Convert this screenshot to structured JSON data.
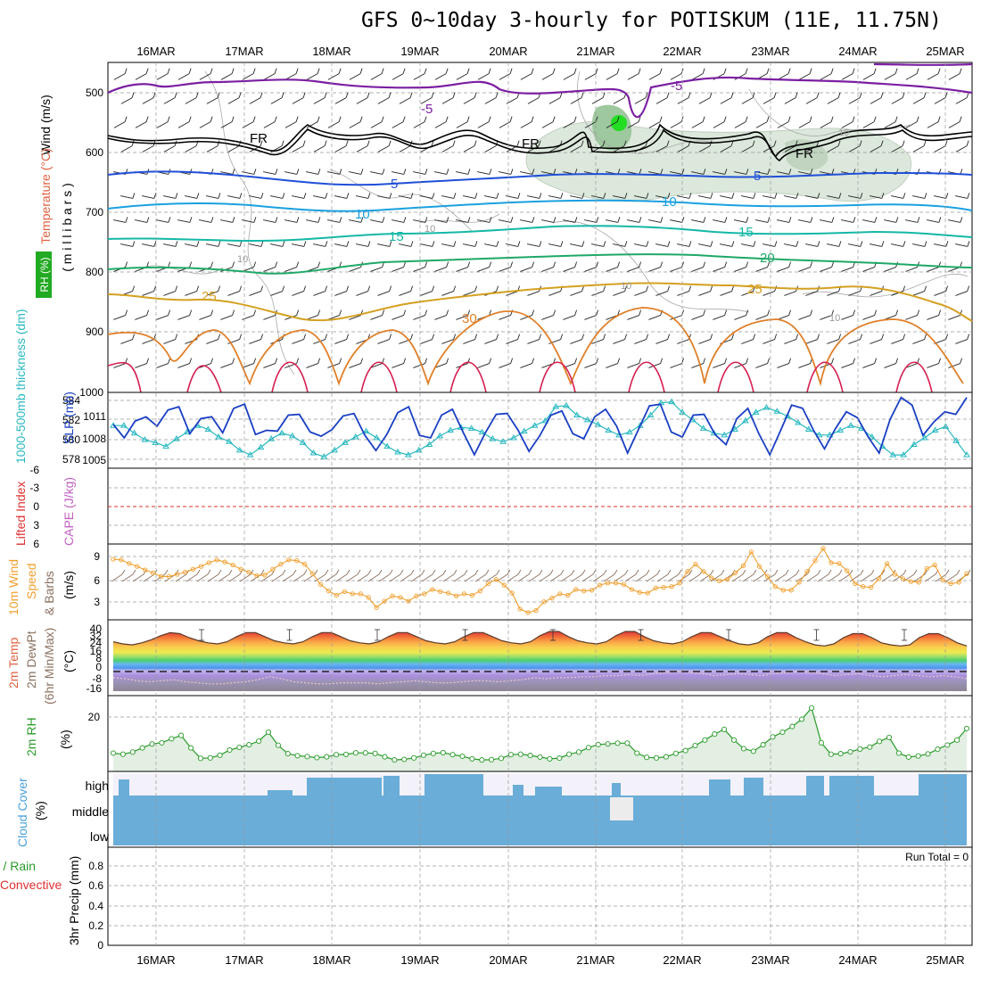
{
  "title": "GFS 0~10day 3-hourly for POTISKUM (11E, 11.75N)",
  "dates": [
    "16MAR",
    "17MAR",
    "18MAR",
    "19MAR",
    "20MAR",
    "21MAR",
    "22MAR",
    "23MAR",
    "24MAR",
    "25MAR"
  ],
  "colors": {
    "purple": "#7b1fa2",
    "black": "#000000",
    "blue": "#1f4fd8",
    "cyan": "#1aa0e0",
    "teal": "#14b8a6",
    "green": "#1fa866",
    "gold": "#d4a020",
    "orange": "#e0802a",
    "red": "#d62050",
    "slp": "#1a3fc4",
    "thick": "#28b8c0",
    "wind10": "#f0a030",
    "rh2m": "#2a9a2a",
    "cloud": "#6aadd8",
    "cloudbg": "#f3f1fa"
  },
  "panels": {
    "upper": {
      "label_wind": "Wind (m/s)",
      "label_temp": "Temperature (°C)",
      "label_rh": "RH (%)",
      "label_mb": "( m i l l i b a r s )",
      "yticks": [
        "500",
        "600",
        "700",
        "800",
        "900",
        "1000"
      ],
      "contour_labels": [
        "-5",
        "-5",
        "FR",
        "FR",
        "FR",
        "5",
        "5",
        "10",
        "10",
        "15",
        "15",
        "20",
        "25",
        "25",
        "30",
        "10",
        "10",
        "10",
        "10",
        "10"
      ]
    },
    "slp": {
      "label_thick": "1000-500mb thickness (dm)",
      "label_slp": "SLP (mb)",
      "yticks_left": [
        "584",
        "582",
        "580",
        "578"
      ],
      "yticks_right": [
        "1011",
        "1008",
        "1005"
      ]
    },
    "cape": {
      "label_li": "Lifted Index",
      "label_cape": "CAPE (J/kg)",
      "yticks": [
        "-6",
        "-3",
        "0",
        "3",
        "6"
      ]
    },
    "wind10": {
      "label_a": "10m Wind",
      "label_b": "Speed",
      "label_c": "& Barbs",
      "label_unit": "(m/s)",
      "yticks": [
        "9",
        "6",
        "3"
      ]
    },
    "temp2m": {
      "label_a": "2m Temp",
      "label_b": "2m DewPt",
      "label_c": "(6hr Min/Max)",
      "label_unit": "(°C)",
      "yticks": [
        "40",
        "32",
        "24",
        "16",
        "8",
        "0",
        "-8",
        "-16"
      ]
    },
    "rh2m": {
      "label_a": "2m RH",
      "label_unit": "(%)",
      "yticks": [
        "20"
      ]
    },
    "cloud": {
      "label_a": "Cloud Cover",
      "label_unit": "(%)",
      "levels": [
        "high",
        "middle",
        "low"
      ]
    },
    "precip": {
      "label_a": "Total / Rain",
      "label_b": "Convective",
      "label_c": "3hr Precip (mm)",
      "run_total": "Run Total = 0",
      "yticks": [
        "0.8",
        "0.6",
        "0.4",
        "0.2",
        "0"
      ]
    }
  },
  "chart_data": [
    {
      "type": "line",
      "title": "",
      "ylabel": "SLP (mb)",
      "ylim": [
        1004,
        1013
      ],
      "series": [
        {
          "name": "SLP (mb)",
          "values": [
            1009.2,
            1007.6,
            1009.6,
            1010.1,
            1009.0,
            1010.9,
            1011.3,
            1008.1,
            1009.9,
            1010.1,
            1008.2,
            1011.1,
            1011.6,
            1008.0,
            1008.5,
            1008.4,
            1010.3,
            1010.4,
            1008.3,
            1007.8,
            1008.6,
            1010.2,
            1010.5,
            1007.9,
            1006.1,
            1008.0,
            1010.6,
            1011.3,
            1007.9,
            1007.6,
            1010.3,
            1011.0,
            1008.2,
            1005.6,
            1008.2,
            1010.4,
            1010.5,
            1008.5,
            1006.0,
            1007.9,
            1010.3,
            1010.8,
            1008.1,
            1007.5,
            1010.1,
            1011.0,
            1009.0,
            1005.8,
            1008.6,
            1011.4,
            1011.6,
            1008.3,
            1007.7,
            1010.3,
            1010.4,
            1008.0,
            1006.8,
            1009.9,
            1011.1,
            1008.1,
            1005.6,
            1008.5,
            1011.5,
            1011.1,
            1008.5,
            1006.3,
            1008.7,
            1010.7,
            1010.0,
            1007.7,
            1005.8,
            1009.8,
            1012.4,
            1011.5,
            1007.9,
            1009.5,
            1010.7,
            1010.4,
            1012.4
          ]
        },
        {
          "name": "1000-500mb thickness (dm)",
          "values": [
            581.0,
            581.0,
            580.2,
            579.5,
            579.2,
            578.8,
            579.6,
            580.3,
            581.0,
            580.6,
            579.8,
            579.3,
            578.4,
            577.9,
            578.7,
            579.6,
            580.2,
            579.9,
            579.2,
            578.1,
            577.7,
            578.4,
            579.2,
            579.8,
            580.4,
            579.7,
            578.8,
            578.2,
            577.9,
            578.4,
            579.0,
            579.9,
            580.5,
            580.8,
            580.7,
            580.3,
            579.6,
            579.3,
            579.7,
            580.4,
            581.0,
            581.5,
            583.0,
            583.1,
            582.1,
            581.6,
            581.1,
            580.5,
            580.0,
            580.3,
            581.0,
            582.1,
            583.4,
            583.5,
            582.4,
            581.6,
            580.7,
            580.2,
            580.0,
            580.6,
            581.5,
            582.4,
            582.9,
            582.5,
            582.0,
            581.3,
            580.6,
            580.0,
            580.0,
            580.5,
            581.0,
            580.7,
            579.8,
            578.8,
            577.9,
            577.9,
            579.0,
            579.7,
            580.5,
            580.9,
            579.4,
            577.9
          ]
        }
      ]
    },
    {
      "type": "line",
      "title": "",
      "ylabel": "(m/s)",
      "ylim": [
        0,
        10.5
      ],
      "series": [
        {
          "name": "10m Wind Speed",
          "values": [
            8.4,
            8.3,
            7.8,
            7.4,
            6.9,
            6.5,
            6.0,
            6.0,
            6.3,
            6.6,
            7.0,
            7.4,
            7.9,
            8.3,
            8.0,
            7.6,
            7.0,
            6.6,
            6.1,
            6.2,
            7.0,
            7.7,
            8.3,
            8.2,
            7.7,
            6.4,
            4.9,
            4.0,
            3.4,
            3.9,
            3.6,
            3.6,
            3.1,
            1.7,
            2.6,
            3.3,
            3.1,
            2.6,
            3.3,
            3.6,
            4.2,
            3.9,
            3.7,
            3.3,
            3.6,
            3.4,
            4.0,
            5.0,
            5.6,
            4.8,
            3.7,
            1.5,
            1.0,
            1.3,
            2.5,
            3.0,
            3.6,
            3.4,
            4.2,
            4.0,
            4.1,
            4.8,
            5.1,
            5.1,
            4.9,
            4.2,
            3.8,
            3.7,
            4.4,
            4.5,
            4.6,
            5.1,
            6.7,
            7.7,
            6.7,
            5.8,
            5.4,
            5.6,
            6.5,
            7.5,
            9.4,
            7.4,
            6.0,
            4.6,
            4.1,
            4.1,
            5.2,
            6.7,
            8.2,
            9.9,
            7.9,
            7.8,
            6.8,
            5.0,
            4.6,
            4.5,
            5.7,
            7.8,
            6.3,
            5.7,
            5.3,
            5.2,
            7.1,
            7.6,
            5.5,
            5.0,
            5.2,
            6.4
          ]
        }
      ]
    },
    {
      "type": "area",
      "title": "",
      "ylabel": "(°C)",
      "ylim": [
        -22,
        45
      ],
      "series": [
        {
          "name": "2m Temp",
          "values": [
            29,
            27,
            26,
            28,
            31,
            35,
            38,
            37,
            33,
            30,
            28,
            27,
            29,
            34,
            38,
            38,
            34,
            30,
            28,
            27,
            29,
            34,
            38,
            38,
            34,
            30,
            28,
            27,
            29,
            34,
            38,
            38,
            34,
            30,
            28,
            27,
            29,
            34,
            38,
            38,
            34,
            30,
            28,
            27,
            29,
            35,
            39,
            39,
            34,
            30,
            28,
            27,
            29,
            35,
            39,
            39,
            34,
            30,
            28,
            27,
            29,
            34,
            38,
            38,
            34,
            30,
            27,
            26,
            28,
            34,
            38,
            38,
            33,
            29,
            26,
            25,
            27,
            33,
            37,
            37,
            33,
            28,
            26,
            25,
            26,
            33,
            37,
            37,
            33,
            28,
            25
          ]
        },
        {
          "name": "2m DewPt",
          "values": [
            -6,
            -7,
            -9,
            -10,
            -9,
            -8,
            -10,
            -11,
            -12,
            -12,
            -11,
            -10,
            -8,
            -5,
            -7,
            -10,
            -11,
            -12,
            -12,
            -11,
            -11,
            -11,
            -12,
            -11,
            -10,
            -9,
            -10,
            -11,
            -11,
            -10,
            -9,
            -9,
            -10,
            -9,
            -8,
            -6,
            -7,
            -6,
            -6,
            -5,
            -5,
            -4,
            -4,
            -3,
            -4,
            -2,
            -1,
            0,
            -1,
            -2,
            -4,
            -3,
            -2,
            -3,
            -4,
            -2,
            -1,
            0,
            -1,
            -2,
            -4,
            -3,
            -2,
            -4,
            -5,
            -4,
            -3,
            -4,
            -5,
            -4,
            -5,
            -7
          ]
        }
      ]
    },
    {
      "type": "line",
      "title": "",
      "ylabel": "(%)",
      "ylim": [
        0,
        29
      ],
      "series": [
        {
          "name": "2m RH",
          "values": [
            7.0,
            6.6,
            7.4,
            9.0,
            10.5,
            11.0,
            12.5,
            13.8,
            9.0,
            5.0,
            5.2,
            6.2,
            8.2,
            9.2,
            10.2,
            11.6,
            15.0,
            10.0,
            6.8,
            6.0,
            5.7,
            5.3,
            5.6,
            6.4,
            6.5,
            7.1,
            7.1,
            6.9,
            5.6,
            4.4,
            4.6,
            5.2,
            6.2,
            6.9,
            7.2,
            6.4,
            5.8,
            4.8,
            4.4,
            4.5,
            5.0,
            6.4,
            6.6,
            6.1,
            5.5,
            4.8,
            5.1,
            6.6,
            7.4,
            9.1,
            10.3,
            10.5,
            10.8,
            10.8,
            7.0,
            5.4,
            5.2,
            5.6,
            6.9,
            8.0,
            9.9,
            12.0,
            14.3,
            16.1,
            12.0,
            8.7,
            7.7,
            10.2,
            13.2,
            15.0,
            17.2,
            20.0,
            24.3,
            11.0,
            6.6,
            6.8,
            7.5,
            8.6,
            9.3,
            11.5,
            13.0,
            7.0,
            5.5,
            5.9,
            6.7,
            8.5,
            10.1,
            12.0,
            16.4
          ]
        }
      ]
    },
    {
      "type": "line",
      "title": "",
      "ylabel": "3hr Precip (mm)",
      "ylim": [
        0,
        1
      ],
      "series": [
        {
          "name": "Total / Rain",
          "values": [
            0,
            0,
            0,
            0,
            0,
            0,
            0,
            0,
            0,
            0
          ]
        }
      ]
    }
  ]
}
